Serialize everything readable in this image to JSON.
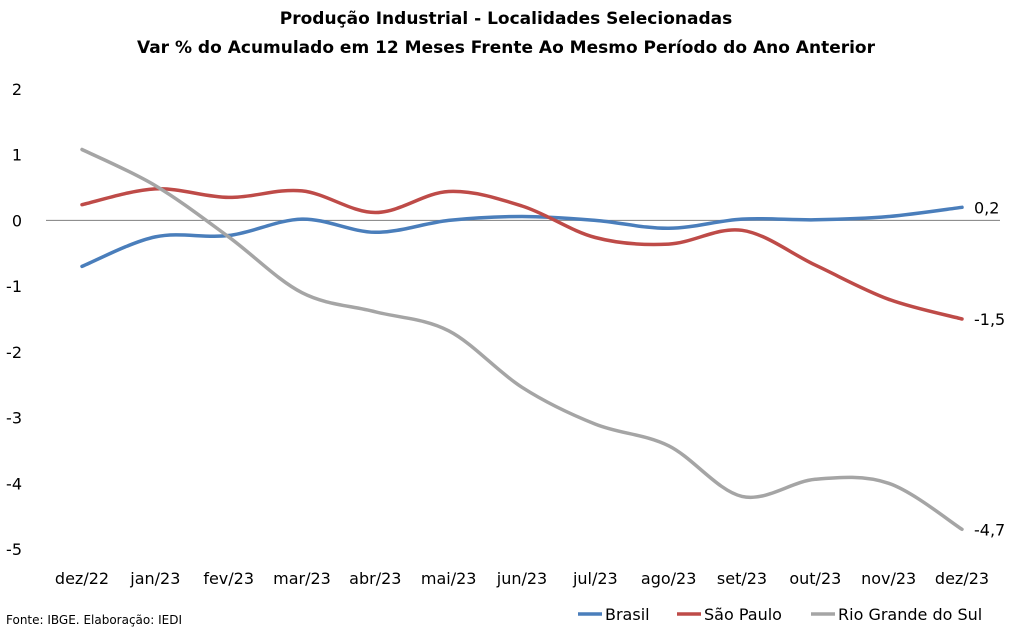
{
  "chart_data": {
    "type": "line",
    "title": "Produção Industrial - Localidades Selecionadas",
    "subtitle": "Var % do Acumulado em 12 Meses Frente Ao Mesmo Período do Ano Anterior",
    "xlabel": "",
    "ylabel": "",
    "categories": [
      "dez/22",
      "jan/23",
      "fev/23",
      "mar/23",
      "abr/23",
      "mai/23",
      "jun/23",
      "jul/23",
      "ago/23",
      "set/23",
      "out/23",
      "nov/23",
      "dez/23"
    ],
    "ylim": [
      -5,
      2
    ],
    "yticks": [
      "2",
      "1",
      "0",
      "-1",
      "-2",
      "-3",
      "-4",
      "-5"
    ],
    "grid": false,
    "legend": "bottom-right",
    "series": [
      {
        "name": "Brasil",
        "color": "#4a7ebb",
        "values": [
          -0.7,
          -0.25,
          -0.23,
          0.02,
          -0.18,
          0.0,
          0.06,
          0.0,
          -0.12,
          0.02,
          0.01,
          0.06,
          0.2
        ],
        "end_label": "0,2"
      },
      {
        "name": "São Paulo",
        "color": "#be4b48",
        "values": [
          0.24,
          0.48,
          0.35,
          0.45,
          0.12,
          0.44,
          0.22,
          -0.26,
          -0.36,
          -0.15,
          -0.68,
          -1.2,
          -1.5
        ],
        "end_label": "-1,5"
      },
      {
        "name": "Rio Grande do Sul",
        "color": "#a5a5a5",
        "values": [
          1.08,
          0.53,
          -0.25,
          -1.1,
          -1.39,
          -1.68,
          -2.54,
          -3.1,
          -3.43,
          -4.2,
          -3.94,
          -4.0,
          -4.7
        ],
        "end_label": "-4,7"
      }
    ],
    "source_note": "Fonte: IBGE. Elaboração: IEDI"
  }
}
